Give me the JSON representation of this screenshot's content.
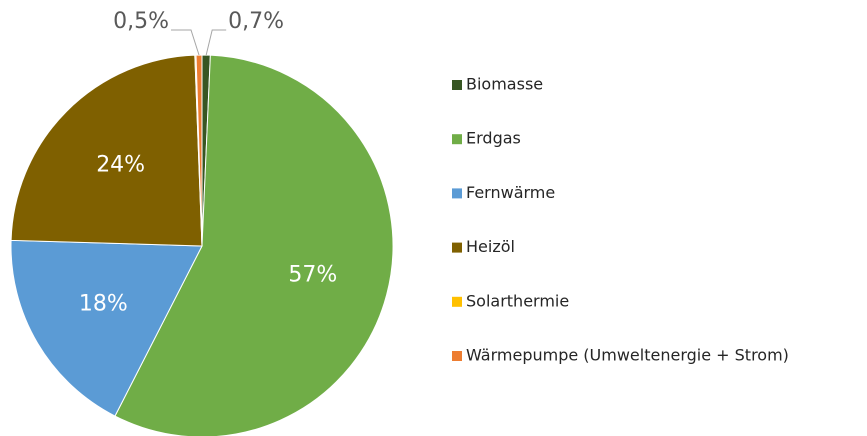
{
  "chart_data": {
    "type": "pie",
    "categories": [
      "Biomasse",
      "Erdgas",
      "Fernwärme",
      "Heizöl",
      "Solarthermie",
      "Wärmepumpe (Umweltenergie + Strom)"
    ],
    "values": [
      0.7,
      57,
      18,
      24,
      0.1,
      0.5
    ],
    "value_labels": [
      "0,7%",
      "57%",
      "18%",
      "24%",
      null,
      "0,5%"
    ],
    "colors": [
      "#375623",
      "#70ad47",
      "#5b9bd5",
      "#7f6000",
      "#ffc000",
      "#ed7d31"
    ],
    "legend": "right"
  }
}
